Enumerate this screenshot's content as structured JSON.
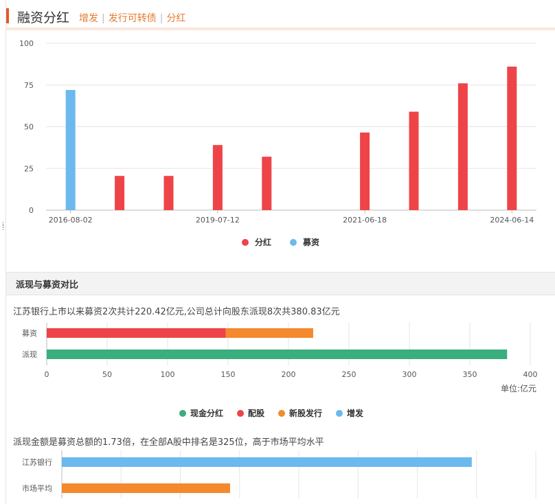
{
  "header": {
    "title": "融资分红",
    "links": [
      "增发",
      "发行可转债",
      "分红"
    ]
  },
  "section2_title": "派现与募资对比",
  "description1": "江苏银行上市以来募资2次共计220.42亿元,公司总计向股东派现8次共380.83亿元",
  "description2": "派现金额是募资总额的1.73倍，在全部A股中排名是325位，高于市场平均水平",
  "unit_label": "单位:亿元",
  "colors": {
    "dividend": "#ee4447",
    "fundraise": "#6bb9ee",
    "cash": "#3aae7f",
    "rights": "#ee4447",
    "new_issue": "#f4892e",
    "additional": "#6bb9ee",
    "accent": "#e4572e",
    "link": "#e47b2f"
  },
  "chart_data": [
    {
      "type": "bar",
      "x_tick_labels": [
        "2016-08-02",
        "2019-07-12",
        "2021-06-18",
        "2024-06-14"
      ],
      "ylim": [
        0,
        100
      ],
      "y_ticks": [
        0,
        25,
        50,
        75,
        100
      ],
      "grid": true,
      "legend": "bottom-center",
      "series": [
        {
          "name": "分红",
          "color": "#ee4447",
          "values": [
            null,
            20.5,
            20.5,
            39,
            32,
            null,
            46.5,
            59,
            76,
            86
          ]
        },
        {
          "name": "募资",
          "color": "#6bb9ee",
          "values": [
            72,
            null,
            null,
            null,
            null,
            null,
            null,
            null,
            null,
            null
          ]
        }
      ]
    },
    {
      "type": "bar",
      "orientation": "horizontal",
      "stacked": true,
      "categories": [
        "募资",
        "派现"
      ],
      "xlim": [
        0,
        400
      ],
      "x_ticks": [
        0,
        50,
        100,
        150,
        200,
        250,
        300,
        350,
        400
      ],
      "grid": true,
      "legend": "bottom-center",
      "series": [
        {
          "name": "现金分红",
          "color": "#3aae7f",
          "values": [
            0,
            380.83
          ]
        },
        {
          "name": "配股",
          "color": "#ee4447",
          "values": [
            148,
            0
          ]
        },
        {
          "name": "新股发行",
          "color": "#f4892e",
          "values": [
            72.42,
            0
          ]
        },
        {
          "name": "增发",
          "color": "#6bb9ee",
          "values": [
            0,
            0
          ]
        }
      ]
    },
    {
      "type": "bar",
      "orientation": "horizontal",
      "categories": [
        "江苏银行",
        "市场平均"
      ],
      "xlim": [
        0,
        2
      ],
      "grid": true,
      "series": [
        {
          "values": [
            1.73,
            0.71
          ],
          "colors": [
            "#6bb9ee",
            "#f4892e"
          ]
        }
      ]
    }
  ]
}
